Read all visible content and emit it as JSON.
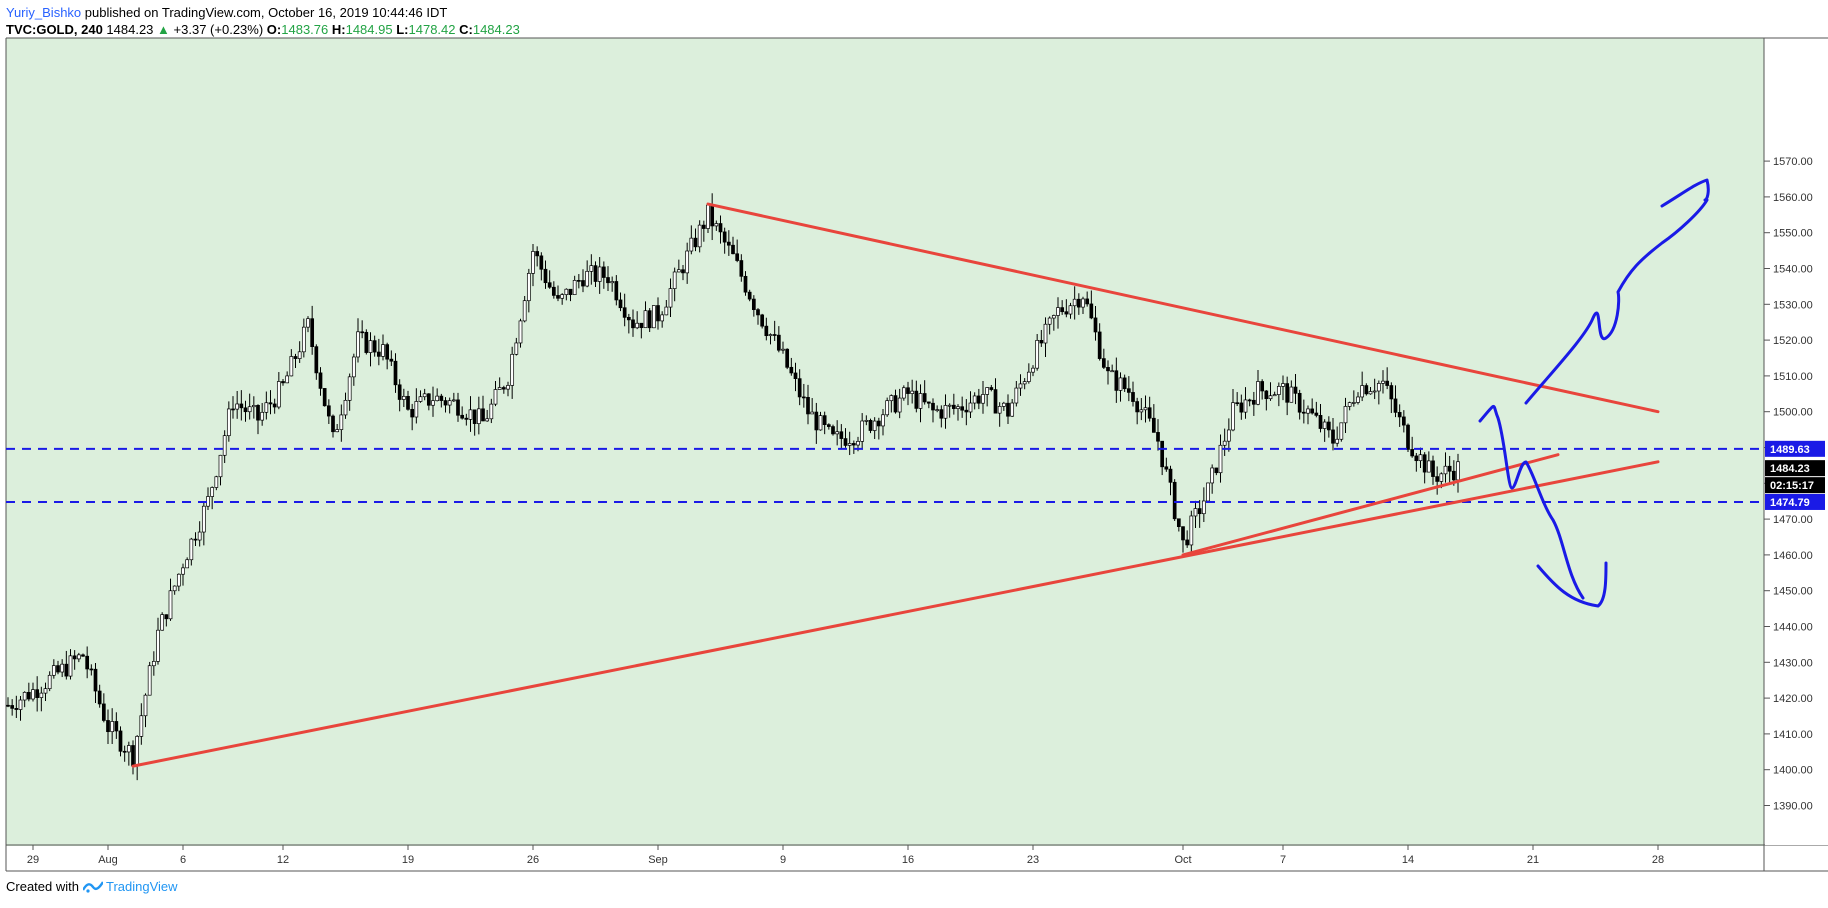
{
  "header": {
    "user": "Yuriy_Bishko",
    "published": "published on TradingView.com, October 16, 2019 10:44:46 IDT",
    "symbol": "TVC:GOLD, 240",
    "last": "1484.23",
    "change_arrow": "▲",
    "change": "+3.37 (+0.23%)",
    "o_label": "O:",
    "o": "1483.76",
    "h_label": "H:",
    "h": "1484.95",
    "l_label": "L:",
    "l": "1478.42",
    "c_label": "C:",
    "c": "1484.23"
  },
  "footer": {
    "created_with": "Created with",
    "brand": "TradingView"
  },
  "colors": {
    "plot_bg": "#dcefdc",
    "trendline": "#e8453c",
    "level": "#1a1ae6",
    "drawing": "#1a1ae6",
    "candle": "#000000"
  },
  "chart_data": {
    "type": "candlestick",
    "symbol": "TVC:GOLD",
    "interval": "240",
    "ylim": [
      1383,
      1575
    ],
    "y_ticks": [
      1390,
      1400,
      1410,
      1420,
      1430,
      1440,
      1450,
      1460,
      1470,
      1480,
      1490,
      1500,
      1510,
      1520,
      1530,
      1540,
      1550,
      1560,
      1570
    ],
    "x_ticks": [
      "29",
      "Aug",
      "6",
      "12",
      "19",
      "26",
      "Sep",
      "9",
      "16",
      "23",
      "Oct",
      "7",
      "14",
      "21",
      "28"
    ],
    "close_path": [
      [
        "Jul 26",
        1418
      ],
      [
        "Jul 29",
        1422
      ],
      [
        "Jul 31",
        1432
      ],
      [
        "Aug 1",
        1412
      ],
      [
        "Aug 2",
        1404
      ],
      [
        "Aug 5",
        1438
      ],
      [
        "Aug 6",
        1458
      ],
      [
        "Aug 7",
        1475
      ],
      [
        "Aug 8",
        1503
      ],
      [
        "Aug 9",
        1498
      ],
      [
        "Aug 12",
        1507
      ],
      [
        "Aug 13",
        1524
      ],
      [
        "Aug 14",
        1492
      ],
      [
        "Aug 15",
        1520
      ],
      [
        "Aug 16",
        1517
      ],
      [
        "Aug 19",
        1500
      ],
      [
        "Aug 20",
        1504
      ],
      [
        "Aug 21",
        1502
      ],
      [
        "Aug 22",
        1497
      ],
      [
        "Aug 23",
        1510
      ],
      [
        "Aug 26",
        1545
      ],
      [
        "Aug 27",
        1530
      ],
      [
        "Aug 28",
        1538
      ],
      [
        "Aug 29",
        1538
      ],
      [
        "Aug 30",
        1525
      ],
      [
        "Sep 2",
        1527
      ],
      [
        "Sep 3",
        1541
      ],
      [
        "Sep 4",
        1555
      ],
      [
        "Sep 5",
        1543
      ],
      [
        "Sep 6",
        1528
      ],
      [
        "Sep 9",
        1515
      ],
      [
        "Sep 10",
        1500
      ],
      [
        "Sep 11",
        1492
      ],
      [
        "Sep 12",
        1494
      ],
      [
        "Sep 13",
        1500
      ],
      [
        "Sep 16",
        1505
      ],
      [
        "Sep 17",
        1500
      ],
      [
        "Sep 18",
        1501
      ],
      [
        "Sep 19",
        1505
      ],
      [
        "Sep 20",
        1500
      ],
      [
        "Sep 23",
        1515
      ],
      [
        "Sep 24",
        1528
      ],
      [
        "Sep 25",
        1533
      ],
      [
        "Sep 26",
        1510
      ],
      [
        "Sep 27",
        1505
      ],
      [
        "Sep 30",
        1492
      ],
      [
        "Oct 1",
        1463
      ],
      [
        "Oct 2",
        1478
      ],
      [
        "Oct 3",
        1500
      ],
      [
        "Oct 4",
        1506
      ],
      [
        "Oct 7",
        1506
      ],
      [
        "Oct 8",
        1500
      ],
      [
        "Oct 9",
        1492
      ],
      [
        "Oct 10",
        1507
      ],
      [
        "Oct 11",
        1508
      ],
      [
        "Oct 14",
        1492
      ],
      [
        "Oct 15",
        1482
      ],
      [
        "Oct 16",
        1484.23
      ]
    ],
    "trendlines": [
      {
        "from": [
          "Sep 4",
          1558
        ],
        "to": [
          "Oct 26",
          1500
        ]
      },
      {
        "from": [
          "Aug 2",
          1401
        ],
        "to": [
          "Oct 26",
          1486
        ]
      },
      {
        "from": [
          "Oct 1",
          1460
        ],
        "to": [
          "Oct 22",
          1488
        ]
      }
    ],
    "horizontal_levels": [
      {
        "value": 1489.63,
        "label": "1489.63"
      },
      {
        "value": 1474.79,
        "label": "1474.79"
      }
    ],
    "price_labels": {
      "last": "1484.23",
      "countdown": "02:15:17"
    },
    "annotations": "hand-drawn blue arrows: one breaking up toward ~1545, one breaking down toward ~1443"
  }
}
